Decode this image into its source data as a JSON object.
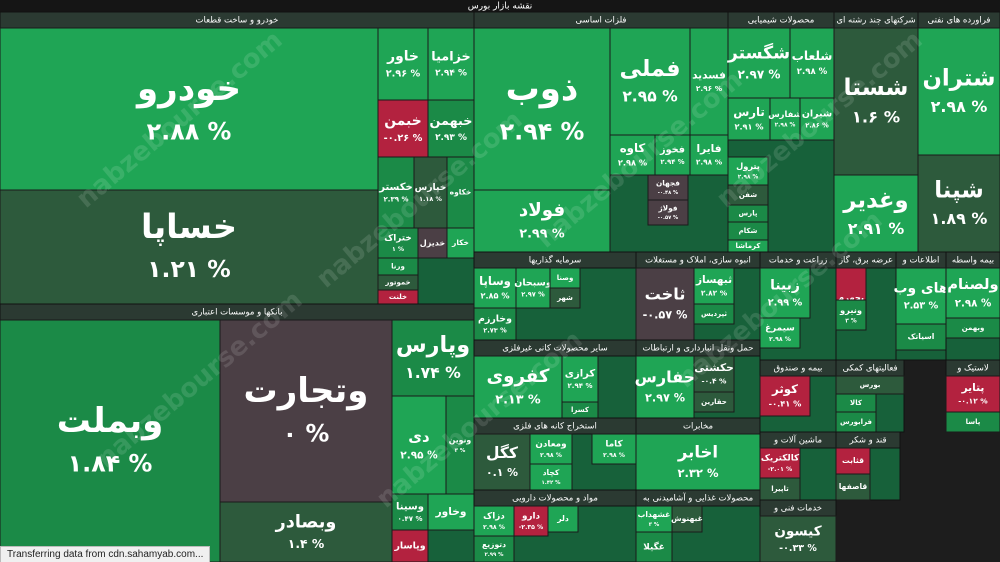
{
  "header": {
    "title": "نقشه بازار بورس"
  },
  "sectors": [
    {
      "title": "خودرو و ساخت قطعات",
      "tiles": [
        {
          "name": "خودرو",
          "change": "۲.۸۸ %"
        },
        {
          "name": "خساپا",
          "change": "۱.۲۱ %"
        },
        {
          "name": "خاور",
          "change": "۲.۹۶ %"
        },
        {
          "name": "خزامیا",
          "change": "۲.۹۴ %"
        },
        {
          "name": "خبمن",
          "change": "-۰.۲۶ %"
        },
        {
          "name": "خبهمن",
          "change": "۲.۹۳ %"
        },
        {
          "name": "خکستر",
          "change": "۲.۳۹ %"
        },
        {
          "name": "خپارس",
          "change": "۱.۱۸ %"
        },
        {
          "name": "خکاوه"
        },
        {
          "name": "ختراک",
          "change": "۱ %"
        },
        {
          "name": "خدیزل"
        },
        {
          "name": "خکار"
        },
        {
          "name": "ورنا"
        },
        {
          "name": "خموتور"
        },
        {
          "name": "خلنت"
        }
      ]
    },
    {
      "title": "بانکها و موسسات اعتباری",
      "tiles": [
        {
          "name": "وبملت",
          "change": "۱.۸۴ %"
        },
        {
          "name": "وتجارت",
          "change": "۰ %"
        },
        {
          "name": "وبصادر",
          "change": "۱.۴ %"
        },
        {
          "name": "وپارس",
          "change": "۱.۷۴ %"
        },
        {
          "name": "دی",
          "change": "۲.۹۵ %"
        },
        {
          "name": "ونوین",
          "change": "۳ %"
        },
        {
          "name": "وسینا",
          "change": "۰.۴۷ %"
        },
        {
          "name": "وخاور"
        },
        {
          "name": "وپاسار"
        }
      ]
    },
    {
      "title": "فلزات اساسی",
      "tiles": [
        {
          "name": "ذوب",
          "change": "۲.۹۴ %"
        },
        {
          "name": "فملی",
          "change": "۲.۹۵ %"
        },
        {
          "name": "فسدید",
          "change": "۲.۹۶ %"
        },
        {
          "name": "فولاد",
          "change": "۲.۹۹ %"
        },
        {
          "name": "کاوه",
          "change": "۲.۹۸ %"
        },
        {
          "name": "فخوز",
          "change": "۲.۹۴ %"
        },
        {
          "name": "فایرا",
          "change": "۲.۹۸ %"
        },
        {
          "name": "فجهان",
          "change": "-۰.۴۸ %"
        },
        {
          "name": "فولاژ",
          "change": "-۰.۵۷ %"
        }
      ]
    },
    {
      "title": "محصولات شیمیایی",
      "tiles": [
        {
          "name": "شگستر",
          "change": "۲.۹۷ %"
        },
        {
          "name": "شلعاب",
          "change": "۲.۹۸ %"
        },
        {
          "name": "تارس",
          "change": "۲.۹۱ %"
        },
        {
          "name": "شفارس",
          "change": "۲.۹۸ %"
        },
        {
          "name": "شیران",
          "change": "۲.۸۶ %"
        },
        {
          "name": "پترول",
          "change": "۲.۹۸ %"
        },
        {
          "name": "شفن"
        },
        {
          "name": "پارس"
        },
        {
          "name": "شکام"
        },
        {
          "name": "کرماشا"
        }
      ]
    },
    {
      "title": "شرکتهای چند رشته ای",
      "tiles": [
        {
          "name": "شستا",
          "change": "۱.۶ %"
        },
        {
          "name": "وغدیر",
          "change": "۲.۹۱ %"
        }
      ]
    },
    {
      "title": "فراورده های نفتی",
      "tiles": [
        {
          "name": "شتران",
          "change": "۲.۹۸ %"
        },
        {
          "name": "شپنا",
          "change": "۱.۸۹ %"
        }
      ]
    },
    {
      "title": "سرمایه گذاریها",
      "tiles": [
        {
          "name": "وساپا",
          "change": "۲.۸۵ %"
        },
        {
          "name": "وسبحان",
          "change": "۲.۹۷ %"
        },
        {
          "name": "وصنا"
        },
        {
          "name": "شهر"
        },
        {
          "name": "وخارزم",
          "change": "۲.۷۳ %"
        }
      ]
    },
    {
      "title": "انبوه سازی، املاک و مستغلات",
      "tiles": [
        {
          "name": "ثاخت",
          "change": "-۰.۵۷ %"
        },
        {
          "name": "ثبهساز",
          "change": "۲.۸۲ %"
        },
        {
          "name": "ثپردیس"
        }
      ]
    },
    {
      "title": "زراعت و خدمات",
      "tiles": [
        {
          "name": "زبینا",
          "change": "۲.۹۹ %"
        },
        {
          "name": "سیمرغ",
          "change": "۲.۹۸ %"
        }
      ]
    },
    {
      "title": "عرضه برق، گاز",
      "tiles": [
        {
          "name": "بجهرم"
        },
        {
          "name": "ونیرو",
          "change": "۳ %"
        }
      ]
    },
    {
      "title": "اطلاعات و",
      "tiles": [
        {
          "name": "های وب",
          "change": "۲.۵۳ %"
        },
        {
          "name": "اسیاتک"
        }
      ]
    },
    {
      "title": "بیمه واسطه",
      "tiles": [
        {
          "name": "ولصنام",
          "change": "۲.۹۸ %"
        },
        {
          "name": "وبهمن"
        }
      ]
    },
    {
      "title": "سایر محصولات کانی غیرفلزی",
      "tiles": [
        {
          "name": "کفروی",
          "change": "۲.۱۳ %"
        },
        {
          "name": "کرازی",
          "change": "۲.۹۴ %"
        },
        {
          "name": "کسرا"
        }
      ]
    },
    {
      "title": "حمل ونقل انبارداری و ارتباطات",
      "tiles": [
        {
          "name": "حفارس",
          "change": "۲.۹۷ %"
        },
        {
          "name": "حکشتی",
          "change": "-۰.۴ %"
        },
        {
          "name": "حقارین"
        }
      ]
    },
    {
      "title": "استخراج کانه های فلزی",
      "tiles": [
        {
          "name": "کگل",
          "change": "۰.۱ %"
        },
        {
          "name": "ومعادن",
          "change": "۲.۹۸ %"
        },
        {
          "name": "کچاد",
          "change": "۱.۴۲ %"
        },
        {
          "name": "کاما",
          "change": "۲.۹۸ %"
        }
      ]
    },
    {
      "title": "مخابرات",
      "tiles": [
        {
          "name": "اخابر",
          "change": "۲.۳۲ %"
        }
      ]
    },
    {
      "title": "مواد و محصولات دارویی",
      "tiles": [
        {
          "name": "دزاک",
          "change": "۲.۹۸ %"
        },
        {
          "name": "دارو",
          "change": "-۲.۳۵ %"
        },
        {
          "name": "دلر"
        },
        {
          "name": "دتوزیع",
          "change": "۲.۹۹ %"
        }
      ]
    },
    {
      "title": "محصولات غذایی و آشامیدنی به",
      "tiles": [
        {
          "name": "غشهداب",
          "change": "۳ %"
        },
        {
          "name": "غبهنوش"
        },
        {
          "name": "غگیلا"
        }
      ]
    },
    {
      "title": "بیمه و صندوق",
      "tiles": [
        {
          "name": "کوثر",
          "change": "-۰.۴۱ %"
        }
      ]
    },
    {
      "title": "فعالیتهای کمکی",
      "tiles": [
        {
          "name": "بورس"
        },
        {
          "name": "کالا"
        },
        {
          "name": "فرابورس"
        }
      ]
    },
    {
      "title": "لاستیک و",
      "tiles": [
        {
          "name": "پتایر",
          "change": "-۰.۱۲ %"
        },
        {
          "name": "پاسا"
        }
      ]
    },
    {
      "title": "ماشین آلات و",
      "tiles": [
        {
          "name": "کالکتریک",
          "change": "-۲.۰۱ %"
        },
        {
          "name": "تاپیرا"
        }
      ]
    },
    {
      "title": "قند و شکر",
      "tiles": [
        {
          "name": "قثابت"
        },
        {
          "name": "قاصفها"
        }
      ]
    },
    {
      "title": "خدمات فنی و",
      "tiles": [
        {
          "name": "کیسون",
          "change": "-۰.۳۳ %"
        }
      ]
    }
  ],
  "watermark": "nabzebourse.com",
  "status": "Transferring data from cdn.sahamyab.com..."
}
